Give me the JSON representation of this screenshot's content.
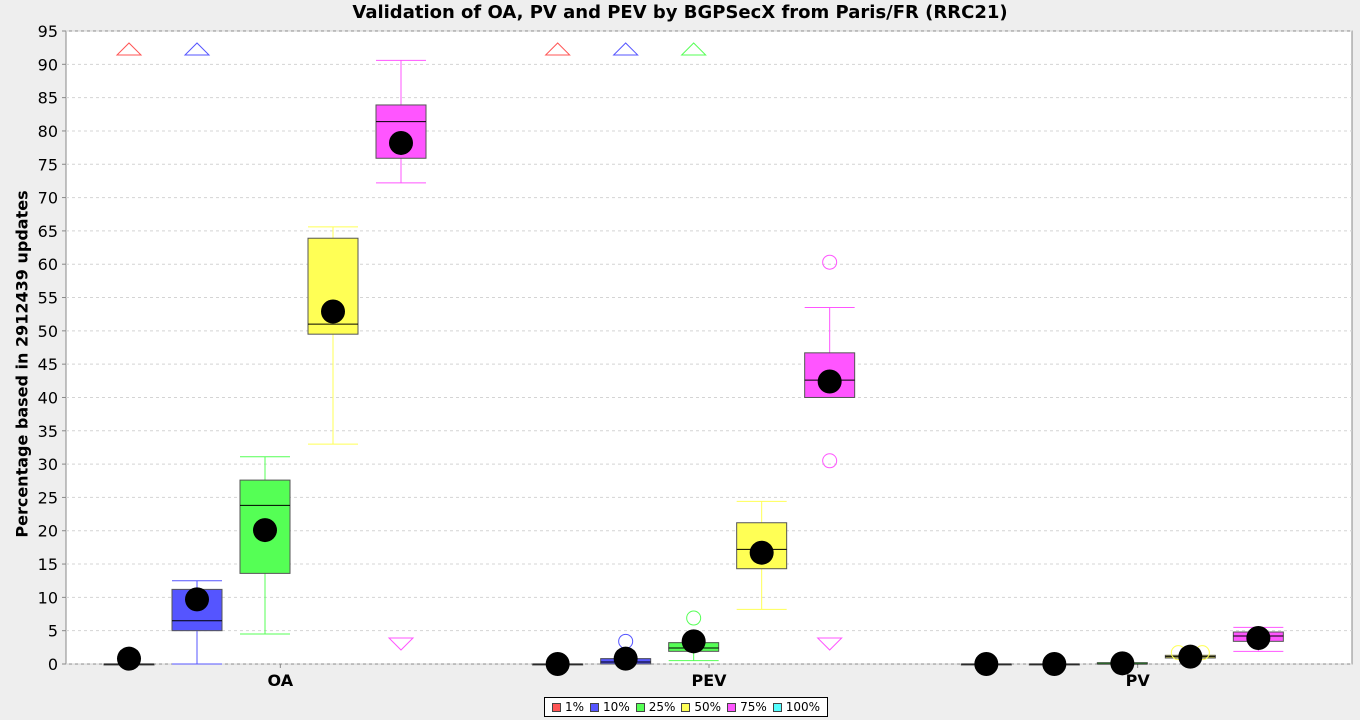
{
  "chart_data": {
    "type": "boxplot",
    "title": "Validation of OA, PV and PEV by BGPSecX from Paris/FR (RRC21)",
    "xlabel": "",
    "ylabel": "Percentage based in 2912439 updates",
    "ylim": [
      0,
      95
    ],
    "yticks": [
      0,
      5,
      10,
      15,
      20,
      25,
      30,
      35,
      40,
      45,
      50,
      55,
      60,
      65,
      70,
      75,
      80,
      85,
      90,
      95
    ],
    "grid": true,
    "legend_position": "bottom",
    "categories": [
      "OA",
      "PEV",
      "PV"
    ],
    "series": [
      {
        "name": "1%",
        "color": "#ff5555",
        "boxes": [
          {
            "category": "OA",
            "min": 0,
            "q1": 0,
            "median": 0,
            "q3": 0,
            "max": 0,
            "mean": 0.8,
            "outliers": [],
            "far_out_high": true,
            "far_out_low": false
          },
          {
            "category": "PEV",
            "min": 0,
            "q1": 0,
            "median": 0,
            "q3": 0,
            "max": 0,
            "mean": 0,
            "outliers": [],
            "far_out_high": true,
            "far_out_low": false
          },
          {
            "category": "PV",
            "min": 0,
            "q1": 0,
            "median": 0,
            "q3": 0,
            "max": 0,
            "mean": 0,
            "outliers": [],
            "far_out_high": false,
            "far_out_low": false
          }
        ]
      },
      {
        "name": "10%",
        "color": "#5555ff",
        "boxes": [
          {
            "category": "OA",
            "min": 0,
            "q1": 5,
            "median": 6.5,
            "q3": 11.2,
            "max": 12.5,
            "mean": 9.7,
            "outliers": [],
            "far_out_high": true,
            "far_out_low": false
          },
          {
            "category": "PEV",
            "min": 0,
            "q1": 0,
            "median": 0.3,
            "q3": 0.8,
            "max": 0.8,
            "mean": 0.8,
            "outliers": [
              3.4
            ],
            "far_out_high": true,
            "far_out_low": false
          },
          {
            "category": "PV",
            "min": 0,
            "q1": 0,
            "median": 0,
            "q3": 0,
            "max": 0,
            "mean": 0,
            "outliers": [],
            "far_out_high": false,
            "far_out_low": false
          }
        ]
      },
      {
        "name": "25%",
        "color": "#55ff55",
        "boxes": [
          {
            "category": "OA",
            "min": 4.5,
            "q1": 13.6,
            "median": 23.8,
            "q3": 27.6,
            "max": 31.1,
            "mean": 20.1,
            "outliers": [],
            "far_out_high": false,
            "far_out_low": false
          },
          {
            "category": "PEV",
            "min": 0.5,
            "q1": 1.9,
            "median": 2.4,
            "q3": 3.2,
            "max": 3.2,
            "mean": 3.4,
            "outliers": [
              6.9
            ],
            "far_out_high": true,
            "far_out_low": false
          },
          {
            "category": "PV",
            "min": 0,
            "q1": 0,
            "median": 0,
            "q3": 0.2,
            "max": 0.2,
            "mean": 0.1,
            "outliers": [],
            "far_out_high": false,
            "far_out_low": false
          }
        ]
      },
      {
        "name": "50%",
        "color": "#ffff55",
        "boxes": [
          {
            "category": "OA",
            "min": 33,
            "q1": 49.5,
            "median": 51,
            "q3": 63.9,
            "max": 65.6,
            "mean": 52.9,
            "outliers": [],
            "far_out_high": false,
            "far_out_low": false
          },
          {
            "category": "PEV",
            "min": 8.2,
            "q1": 14.3,
            "median": 17.2,
            "q3": 21.2,
            "max": 24.4,
            "mean": 16.7,
            "outliers": [],
            "far_out_high": false,
            "far_out_low": false
          },
          {
            "category": "PV",
            "min": 0.9,
            "q1": 0.9,
            "median": 1.1,
            "q3": 1.3,
            "max": 1.3,
            "mean": 1.1,
            "outliers": [
              1.7,
              1.7
            ],
            "far_out_high": false,
            "far_out_low": false
          }
        ]
      },
      {
        "name": "75%",
        "color": "#ff55ff",
        "boxes": [
          {
            "category": "OA",
            "min": 72.2,
            "q1": 75.9,
            "median": 81.4,
            "q3": 83.9,
            "max": 90.6,
            "mean": 78.2,
            "outliers": [],
            "far_out_high": false,
            "far_out_low": true
          },
          {
            "category": "PEV",
            "min": 40,
            "q1": 40,
            "median": 42.6,
            "q3": 46.7,
            "max": 53.5,
            "mean": 42.4,
            "outliers": [
              60.3,
              30.5
            ],
            "far_out_high": false,
            "far_out_low": true
          },
          {
            "category": "PV",
            "min": 1.9,
            "q1": 3.4,
            "median": 4.2,
            "q3": 4.8,
            "max": 5.5,
            "mean": 3.9,
            "outliers": [],
            "far_out_high": false,
            "far_out_low": false
          }
        ]
      },
      {
        "name": "100%",
        "color": "#55ffff",
        "boxes": []
      }
    ]
  }
}
